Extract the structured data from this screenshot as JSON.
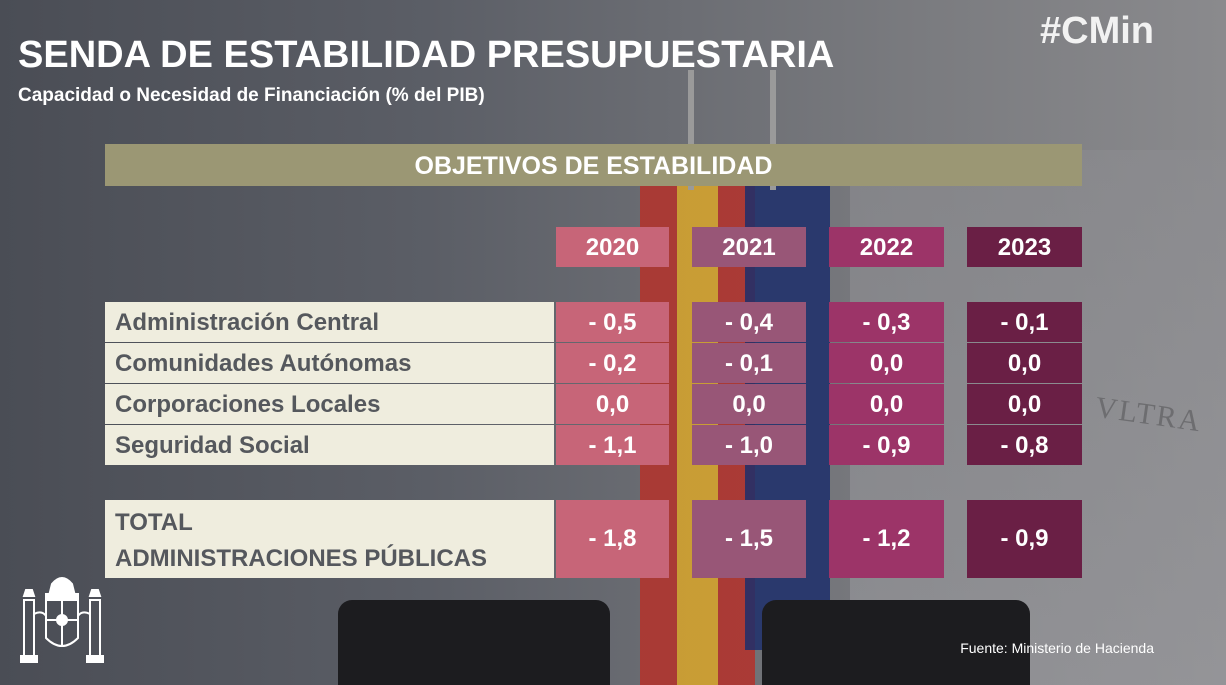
{
  "header": {
    "title": "SENDA DE ESTABILIDAD PRESUPUESTARIA",
    "subtitle": "Capacidad o Necesidad de Financiación (% del PIB)",
    "hashtag": "#CMin"
  },
  "table": {
    "section_title": "OBJETIVOS DE ESTABILIDAD",
    "years": [
      "2020",
      "2021",
      "2022",
      "2023"
    ],
    "rows": [
      {
        "label": "Administración Central",
        "values": [
          "- 0,5",
          "- 0,4",
          "- 0,3",
          "- 0,1"
        ]
      },
      {
        "label": "Comunidades Autónomas",
        "values": [
          "- 0,2",
          "- 0,1",
          "0,0",
          "0,0"
        ]
      },
      {
        "label": "Corporaciones Locales",
        "values": [
          "0,0",
          "0,0",
          "0,0",
          "0,0"
        ]
      },
      {
        "label": "Seguridad Social",
        "values": [
          "- 1,1",
          "- 1,0",
          "- 0,9",
          "- 0,8"
        ]
      }
    ],
    "total": {
      "label_line1": "TOTAL",
      "label_line2": "ADMINISTRACIONES PÚBLICAS",
      "values": [
        "- 1,8",
        "- 1,5",
        "- 1,2",
        "- 0,9"
      ]
    },
    "colors": {
      "2020": "#c76578",
      "2021": "#985677",
      "2022": "#9c3468",
      "2023": "#6a1f45",
      "band": "#9b9774",
      "label_bg": "#efedde"
    }
  },
  "footer": {
    "source": "Fuente: Ministerio de Hacienda"
  },
  "background": {
    "motto": "VLTRA"
  },
  "icons": {
    "coat_of_arms": "coat-of-arms-icon"
  }
}
